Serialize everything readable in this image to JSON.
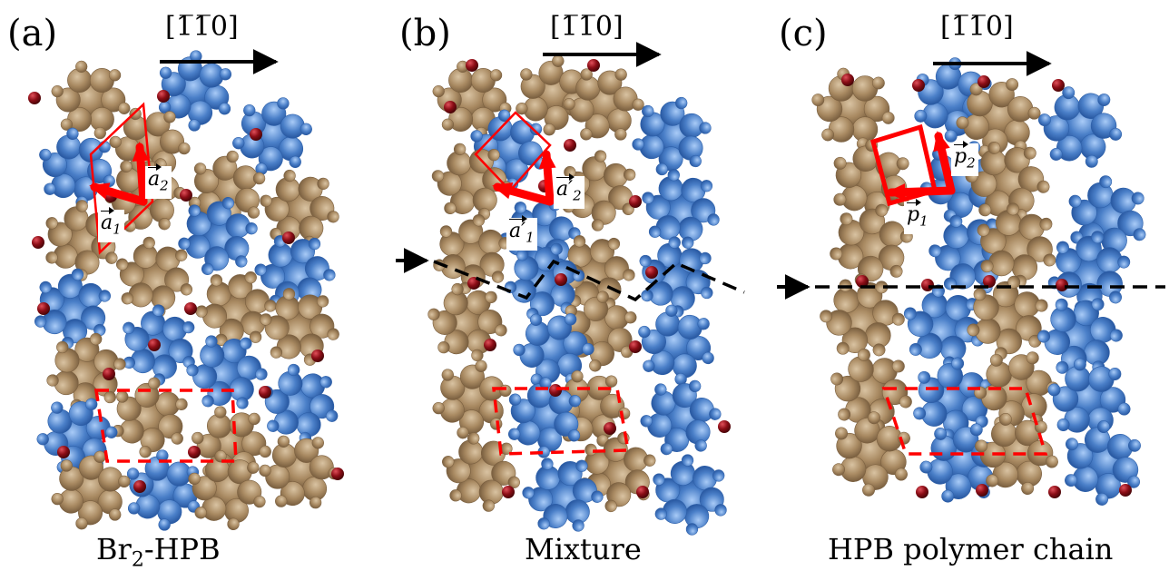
{
  "panels": [
    {
      "label": "(a)",
      "direction": "[1̅1̅0]",
      "caption_main": "Br",
      "caption_sub": "2",
      "caption_rest": "-HPB",
      "v1": {
        "sym": "a",
        "prime": "",
        "sub": "1"
      },
      "v2": {
        "sym": "a",
        "prime": "",
        "sub": "2"
      }
    },
    {
      "label": "(b)",
      "direction": "[1̅1̅0]",
      "caption_main": "Mixture",
      "v1": {
        "sym": "a",
        "prime": "′",
        "sub": "1"
      },
      "v2": {
        "sym": "a",
        "prime": "′",
        "sub": "2"
      }
    },
    {
      "label": "(c)",
      "direction": "[1̅1̅0]",
      "caption_main": "HPB polymer chain",
      "v1": {
        "sym": "p",
        "prime": "",
        "sub": "1"
      },
      "v2": {
        "sym": "p",
        "prime": "",
        "sub": "2"
      }
    }
  ],
  "colors": {
    "hpb_blue": "#4a7fc8",
    "brhpb_tan": "#a98a62",
    "bromine": "#8b0d16",
    "cell_red": "#ff0000",
    "marker": "#000000"
  }
}
